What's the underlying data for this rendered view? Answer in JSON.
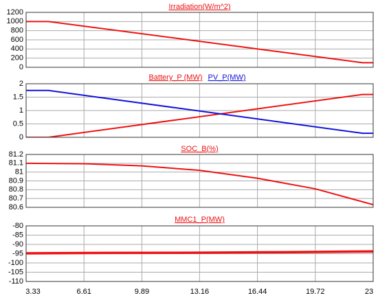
{
  "chart_data": [
    {
      "type": "line",
      "title": "Irradiation(W/m^2)",
      "grid": true,
      "xlim": [
        3.33,
        23
      ],
      "ylim": [
        0,
        1200
      ],
      "yticks": [
        0,
        200,
        400,
        600,
        800,
        1000,
        1200
      ],
      "series": [
        {
          "name": null,
          "color": "#ee1111",
          "x": [
            3.33,
            4.6,
            22.4,
            23
          ],
          "values": [
            1000,
            1000,
            100,
            100
          ]
        }
      ]
    },
    {
      "type": "line",
      "grid": true,
      "xlim": [
        3.33,
        23
      ],
      "ylim": [
        0,
        2
      ],
      "yticks": [
        0,
        0.5,
        1,
        1.5,
        2
      ],
      "series": [
        {
          "name": "Battery_P (MW)",
          "color": "#ee1111",
          "x": [
            3.33,
            4.6,
            22.4,
            23
          ],
          "values": [
            0,
            0,
            1.6,
            1.6
          ]
        },
        {
          "name": "PV_P(MW)",
          "color": "#1111dd",
          "x": [
            3.33,
            4.6,
            22.4,
            23
          ],
          "values": [
            1.75,
            1.75,
            0.15,
            0.15
          ]
        }
      ]
    },
    {
      "type": "line",
      "title": "SOC_B(%)",
      "grid": true,
      "xlim": [
        3.33,
        23
      ],
      "ylim": [
        80.6,
        81.2
      ],
      "yticks": [
        80.6,
        80.7,
        80.8,
        80.9,
        81,
        81.1,
        81.2
      ],
      "series": [
        {
          "name": null,
          "color": "#ee1111",
          "x": [
            3.33,
            6.61,
            9.89,
            13.16,
            16.44,
            19.72,
            23
          ],
          "values": [
            81.1,
            81.095,
            81.07,
            81.02,
            80.93,
            80.81,
            80.63
          ]
        }
      ]
    },
    {
      "type": "line",
      "title": "MMC1_P(MW)",
      "grid": true,
      "xlim": [
        3.33,
        23
      ],
      "ylim": [
        -110,
        -80
      ],
      "yticks": [
        -110,
        -105,
        -100,
        -95,
        -90,
        -85,
        -80
      ],
      "xticks": [
        3.33,
        6.61,
        9.89,
        13.16,
        16.44,
        19.72,
        23
      ],
      "series": [
        {
          "name": null,
          "color": "#ee1111",
          "x": [
            3.33,
            8,
            13.16,
            18,
            23
          ],
          "values": [
            -94.8,
            -94.6,
            -94.5,
            -94.2,
            -93.8
          ]
        }
      ]
    }
  ]
}
